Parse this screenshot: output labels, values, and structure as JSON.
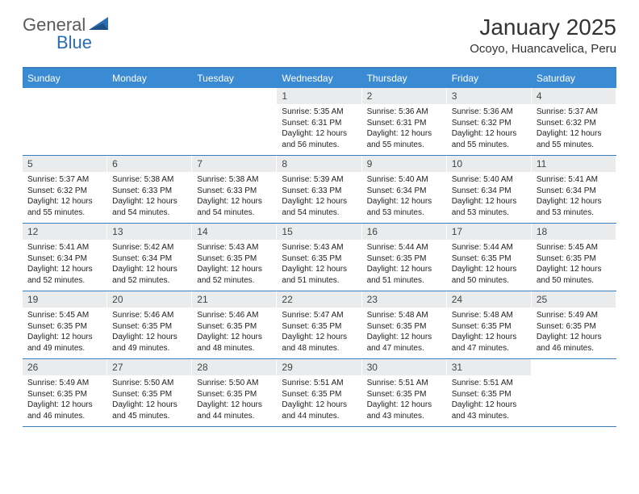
{
  "brand": {
    "part1": "General",
    "part2": "Blue"
  },
  "title": "January 2025",
  "location": "Ocoyo, Huancavelica, Peru",
  "colors": {
    "header_bg": "#3a8bd4",
    "border": "#3a7dbf",
    "daynum_bg": "#e9ebec",
    "text": "#222222",
    "logo_grey": "#5a5a5a",
    "logo_blue": "#2a6db5"
  },
  "day_headers": [
    "Sunday",
    "Monday",
    "Tuesday",
    "Wednesday",
    "Thursday",
    "Friday",
    "Saturday"
  ],
  "weeks": [
    [
      {
        "n": "",
        "sr": "",
        "ss": "",
        "dl": ""
      },
      {
        "n": "",
        "sr": "",
        "ss": "",
        "dl": ""
      },
      {
        "n": "",
        "sr": "",
        "ss": "",
        "dl": ""
      },
      {
        "n": "1",
        "sr": "5:35 AM",
        "ss": "6:31 PM",
        "dl": "12 hours and 56 minutes."
      },
      {
        "n": "2",
        "sr": "5:36 AM",
        "ss": "6:31 PM",
        "dl": "12 hours and 55 minutes."
      },
      {
        "n": "3",
        "sr": "5:36 AM",
        "ss": "6:32 PM",
        "dl": "12 hours and 55 minutes."
      },
      {
        "n": "4",
        "sr": "5:37 AM",
        "ss": "6:32 PM",
        "dl": "12 hours and 55 minutes."
      }
    ],
    [
      {
        "n": "5",
        "sr": "5:37 AM",
        "ss": "6:32 PM",
        "dl": "12 hours and 55 minutes."
      },
      {
        "n": "6",
        "sr": "5:38 AM",
        "ss": "6:33 PM",
        "dl": "12 hours and 54 minutes."
      },
      {
        "n": "7",
        "sr": "5:38 AM",
        "ss": "6:33 PM",
        "dl": "12 hours and 54 minutes."
      },
      {
        "n": "8",
        "sr": "5:39 AM",
        "ss": "6:33 PM",
        "dl": "12 hours and 54 minutes."
      },
      {
        "n": "9",
        "sr": "5:40 AM",
        "ss": "6:34 PM",
        "dl": "12 hours and 53 minutes."
      },
      {
        "n": "10",
        "sr": "5:40 AM",
        "ss": "6:34 PM",
        "dl": "12 hours and 53 minutes."
      },
      {
        "n": "11",
        "sr": "5:41 AM",
        "ss": "6:34 PM",
        "dl": "12 hours and 53 minutes."
      }
    ],
    [
      {
        "n": "12",
        "sr": "5:41 AM",
        "ss": "6:34 PM",
        "dl": "12 hours and 52 minutes."
      },
      {
        "n": "13",
        "sr": "5:42 AM",
        "ss": "6:34 PM",
        "dl": "12 hours and 52 minutes."
      },
      {
        "n": "14",
        "sr": "5:43 AM",
        "ss": "6:35 PM",
        "dl": "12 hours and 52 minutes."
      },
      {
        "n": "15",
        "sr": "5:43 AM",
        "ss": "6:35 PM",
        "dl": "12 hours and 51 minutes."
      },
      {
        "n": "16",
        "sr": "5:44 AM",
        "ss": "6:35 PM",
        "dl": "12 hours and 51 minutes."
      },
      {
        "n": "17",
        "sr": "5:44 AM",
        "ss": "6:35 PM",
        "dl": "12 hours and 50 minutes."
      },
      {
        "n": "18",
        "sr": "5:45 AM",
        "ss": "6:35 PM",
        "dl": "12 hours and 50 minutes."
      }
    ],
    [
      {
        "n": "19",
        "sr": "5:45 AM",
        "ss": "6:35 PM",
        "dl": "12 hours and 49 minutes."
      },
      {
        "n": "20",
        "sr": "5:46 AM",
        "ss": "6:35 PM",
        "dl": "12 hours and 49 minutes."
      },
      {
        "n": "21",
        "sr": "5:46 AM",
        "ss": "6:35 PM",
        "dl": "12 hours and 48 minutes."
      },
      {
        "n": "22",
        "sr": "5:47 AM",
        "ss": "6:35 PM",
        "dl": "12 hours and 48 minutes."
      },
      {
        "n": "23",
        "sr": "5:48 AM",
        "ss": "6:35 PM",
        "dl": "12 hours and 47 minutes."
      },
      {
        "n": "24",
        "sr": "5:48 AM",
        "ss": "6:35 PM",
        "dl": "12 hours and 47 minutes."
      },
      {
        "n": "25",
        "sr": "5:49 AM",
        "ss": "6:35 PM",
        "dl": "12 hours and 46 minutes."
      }
    ],
    [
      {
        "n": "26",
        "sr": "5:49 AM",
        "ss": "6:35 PM",
        "dl": "12 hours and 46 minutes."
      },
      {
        "n": "27",
        "sr": "5:50 AM",
        "ss": "6:35 PM",
        "dl": "12 hours and 45 minutes."
      },
      {
        "n": "28",
        "sr": "5:50 AM",
        "ss": "6:35 PM",
        "dl": "12 hours and 44 minutes."
      },
      {
        "n": "29",
        "sr": "5:51 AM",
        "ss": "6:35 PM",
        "dl": "12 hours and 44 minutes."
      },
      {
        "n": "30",
        "sr": "5:51 AM",
        "ss": "6:35 PM",
        "dl": "12 hours and 43 minutes."
      },
      {
        "n": "31",
        "sr": "5:51 AM",
        "ss": "6:35 PM",
        "dl": "12 hours and 43 minutes."
      },
      {
        "n": "",
        "sr": "",
        "ss": "",
        "dl": ""
      }
    ]
  ],
  "labels": {
    "sunrise": "Sunrise:",
    "sunset": "Sunset:",
    "daylight": "Daylight:"
  }
}
